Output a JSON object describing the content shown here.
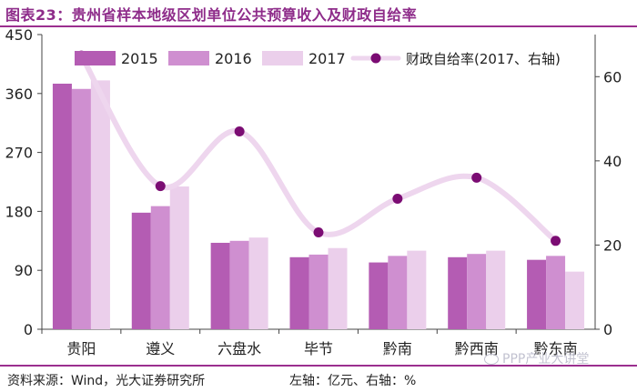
{
  "title": "图表23：贵州省样本地级区划单位公共预算收入及财政自给率",
  "source": "资料来源：Wind，光大证券研究所",
  "axis_note": "左轴：亿元、右轴：%",
  "watermark": "PPP产业大讲堂",
  "colors": {
    "title": "#8e2c8a",
    "border": "#9b2f8f",
    "s2015": "#b45cb3",
    "s2016": "#cf8fd0",
    "s2017": "#ebcfeb",
    "line": "#eed6ee",
    "marker": "#7b0c73"
  },
  "chart_data": {
    "type": "bar",
    "categories": [
      "贵阳",
      "遵义",
      "六盘水",
      "毕节",
      "黔南",
      "黔西南",
      "黔东南"
    ],
    "series": [
      {
        "name": "2015",
        "axis": "left",
        "values": [
          375,
          178,
          132,
          110,
          102,
          110,
          106
        ]
      },
      {
        "name": "2016",
        "axis": "left",
        "values": [
          367,
          188,
          135,
          114,
          112,
          115,
          112
        ]
      },
      {
        "name": "2017",
        "axis": "left",
        "values": [
          380,
          218,
          140,
          124,
          120,
          120,
          88
        ]
      },
      {
        "name": "财政自给率(2017、右轴)",
        "axis": "right",
        "type": "line",
        "values": [
          65,
          34,
          47,
          23,
          31,
          36,
          21
        ]
      }
    ],
    "y_left": {
      "min": 0,
      "max": 450,
      "ticks": [
        0,
        90,
        180,
        270,
        360,
        450
      ]
    },
    "y_right": {
      "min": 0,
      "max": 70,
      "ticks": [
        0,
        20,
        40,
        60
      ]
    },
    "legend": {
      "position": "top",
      "labels": [
        "2015",
        "2016",
        "2017",
        "财政自给率(2017、右轴)"
      ]
    }
  }
}
